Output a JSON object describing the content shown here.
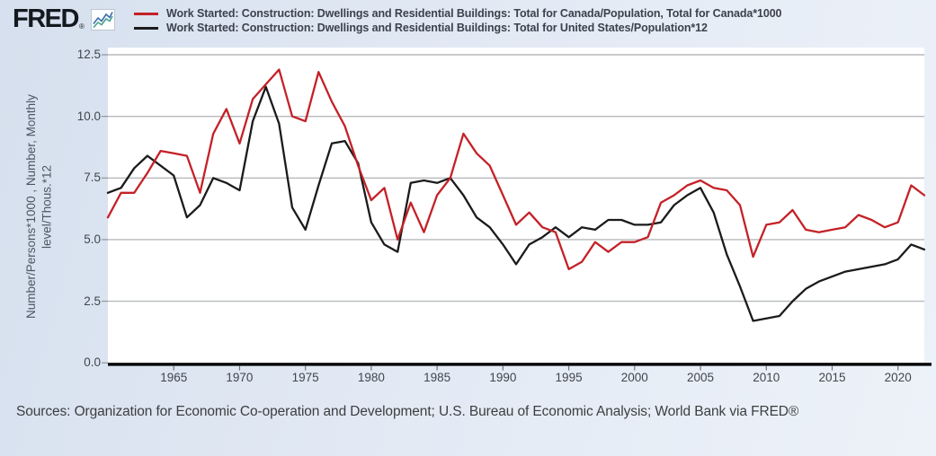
{
  "header": {
    "logo_text": "FRED",
    "logo_reg": "®"
  },
  "legend": [
    {
      "label": "Work Started: Construction: Dwellings and Residential Buildings: Total for Canada/Population, Total for Canada*1000",
      "color": "#c42127"
    },
    {
      "label": "Work Started: Construction: Dwellings and Residential Buildings: Total for United States/Population*12",
      "color": "#1b1b1b"
    }
  ],
  "chart_data": {
    "type": "line",
    "title": "",
    "ylabel_line1": "Number/Persons*1000 , Number, Monthly",
    "ylabel_line2": "level/Thous.*12",
    "xlim": [
      1960,
      2022
    ],
    "ylim": [
      0,
      12.5
    ],
    "grid": "horizontal-only",
    "legend_position": "top",
    "grid_color": "#b6babe",
    "axis_color": "#000000",
    "x": [
      1960,
      1961,
      1962,
      1963,
      1964,
      1965,
      1966,
      1967,
      1968,
      1969,
      1970,
      1971,
      1972,
      1973,
      1974,
      1975,
      1976,
      1977,
      1978,
      1979,
      1980,
      1981,
      1982,
      1983,
      1984,
      1985,
      1986,
      1987,
      1988,
      1989,
      1990,
      1991,
      1992,
      1993,
      1994,
      1995,
      1996,
      1997,
      1998,
      1999,
      2000,
      2001,
      2002,
      2003,
      2004,
      2005,
      2006,
      2007,
      2008,
      2009,
      2010,
      2011,
      2012,
      2013,
      2014,
      2015,
      2016,
      2017,
      2018,
      2019,
      2020,
      2021,
      2022
    ],
    "series": [
      {
        "name": "Work Started: Construction: Dwellings and Residential Buildings: Total for Canada/Population, Total for Canada*1000",
        "color": "#c42127",
        "values": [
          5.9,
          6.9,
          6.9,
          7.7,
          8.6,
          8.5,
          8.4,
          6.9,
          9.3,
          10.3,
          8.9,
          10.7,
          11.3,
          11.9,
          10.0,
          9.8,
          11.8,
          10.6,
          9.6,
          8.0,
          6.6,
          7.1,
          5.0,
          6.5,
          5.3,
          6.8,
          7.5,
          9.3,
          8.5,
          8.0,
          6.8,
          5.6,
          6.1,
          5.5,
          5.3,
          3.8,
          4.1,
          4.9,
          4.5,
          4.9,
          4.9,
          5.1,
          6.5,
          6.8,
          7.2,
          7.4,
          7.1,
          7.0,
          6.4,
          4.3,
          5.6,
          5.7,
          6.2,
          5.4,
          5.3,
          5.4,
          5.5,
          6.0,
          5.8,
          5.5,
          5.7,
          7.2,
          6.8
        ]
      },
      {
        "name": "Work Started: Construction: Dwellings and Residential Buildings: Total for United States/Population*12",
        "color": "#1b1b1b",
        "values": [
          6.9,
          7.1,
          7.9,
          8.4,
          8.0,
          7.6,
          5.9,
          6.4,
          7.5,
          7.3,
          7.0,
          9.8,
          11.2,
          9.7,
          6.3,
          5.4,
          7.2,
          8.9,
          9.0,
          8.1,
          5.7,
          4.8,
          4.5,
          7.3,
          7.4,
          7.3,
          7.5,
          6.8,
          5.9,
          5.5,
          4.8,
          4.0,
          4.8,
          5.1,
          5.5,
          5.1,
          5.5,
          5.4,
          5.8,
          5.8,
          5.6,
          5.6,
          5.7,
          6.4,
          6.8,
          7.1,
          6.1,
          4.4,
          3.1,
          1.7,
          1.8,
          1.9,
          2.5,
          3.0,
          3.3,
          3.5,
          3.7,
          3.8,
          3.9,
          4.0,
          4.2,
          4.8,
          4.6
        ]
      }
    ],
    "x_ticks": [
      1965,
      1970,
      1975,
      1980,
      1985,
      1990,
      1995,
      2000,
      2005,
      2010,
      2015,
      2020
    ],
    "x_tick_labels": [
      "1965",
      "1970",
      "1975",
      "1980",
      "1985",
      "1990",
      "1995",
      "2000",
      "2005",
      "2010",
      "2015",
      "2020"
    ],
    "y_ticks": [
      0,
      2.5,
      5,
      7.5,
      10,
      12.5
    ],
    "y_tick_labels": [
      "0.0",
      "2.5",
      "5.0",
      "7.5",
      "10.0",
      "12.5"
    ]
  },
  "footer": {
    "sources": "Sources: Organization for Economic Co-operation and Development; U.S. Bureau of Economic Analysis; World Bank via FRED®"
  }
}
